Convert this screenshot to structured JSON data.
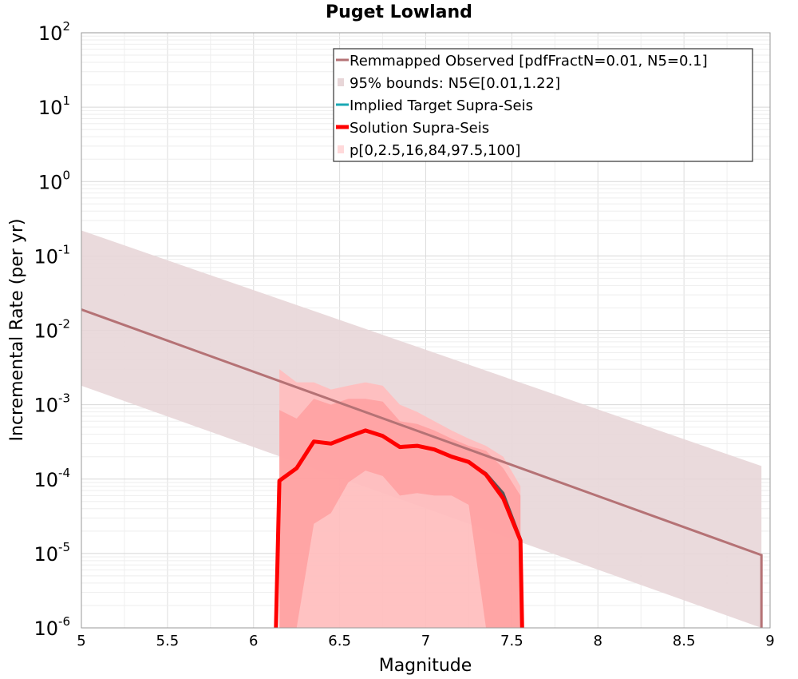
{
  "chart_data": {
    "type": "line",
    "title": "Puget Lowland",
    "xlabel": "Magnitude",
    "ylabel": "Incremental Rate (per yr)",
    "xlim": [
      5,
      9
    ],
    "ylim": [
      1e-06,
      100
    ],
    "yscale": "log",
    "grid": true,
    "legend_position": "top-right",
    "x_ticks": [
      "5",
      "5.5",
      "6",
      "6.5",
      "7",
      "7.5",
      "8",
      "8.5",
      "9"
    ],
    "y_tick_bases": [
      "10",
      "10",
      "10",
      "10",
      "10",
      "10",
      "10",
      "10",
      "10"
    ],
    "y_tick_exponents": [
      "-6",
      "-5",
      "-4",
      "-3",
      "-2",
      "-1",
      "0",
      "1",
      "2"
    ],
    "colors": {
      "observed": "#b57275",
      "observed_band": "#e8d6d8",
      "target": "#1aa9b4",
      "solution": "#ff0000",
      "band_outer": "#ffd9da",
      "band_mid": "#ffaaaa",
      "band_inner": "#ff8e8e"
    },
    "legend": [
      {
        "key": "observed",
        "label": "Remmapped Observed [pdfFractN=0.01, N5=0.1]",
        "style": "line"
      },
      {
        "key": "observed_band",
        "label": "95% bounds: N5∈[0.01,1.22]",
        "style": "box"
      },
      {
        "key": "target",
        "label": "Implied Target Supra-Seis",
        "style": "line"
      },
      {
        "key": "solution",
        "label": "Solution Supra-Seis",
        "style": "thick"
      },
      {
        "key": "band_outer",
        "label": "p[0,2.5,16,84,97.5,100]",
        "style": "box"
      }
    ],
    "series": [
      {
        "name": "Remmapped Observed [pdfFractN=0.01, N5=0.1]",
        "x": [
          5.0,
          8.95
        ],
        "y": [
          0.019,
          9.5e-06
        ]
      },
      {
        "name": "95% bounds: N5∈[0.01,1.22]",
        "type": "band",
        "x": [
          5.0,
          8.95
        ],
        "y_low": [
          0.0018,
          8e-07
        ],
        "y_high": [
          0.22,
          0.00015
        ]
      },
      {
        "name": "Implied Target Supra-Seis",
        "x": [
          6.15,
          6.25,
          6.35,
          6.45,
          6.55,
          6.65,
          6.75,
          6.85,
          6.95,
          7.05,
          7.15,
          7.25,
          7.35,
          7.45,
          7.55
        ],
        "y": [
          9.5e-05,
          0.00014,
          0.00032,
          0.0003,
          0.00037,
          0.00045,
          0.00038,
          0.00027,
          0.00028,
          0.00025,
          0.0002,
          0.00017,
          0.00012,
          6.5e-05,
          1.6e-05
        ]
      },
      {
        "name": "Solution Supra-Seis",
        "x": [
          6.13,
          6.15,
          6.25,
          6.35,
          6.45,
          6.55,
          6.65,
          6.75,
          6.85,
          6.95,
          7.05,
          7.15,
          7.25,
          7.35,
          7.45,
          7.55,
          7.56
        ],
        "y": [
          1e-06,
          9.5e-05,
          0.00014,
          0.00032,
          0.0003,
          0.00037,
          0.00045,
          0.00038,
          0.00027,
          0.00028,
          0.00025,
          0.0002,
          0.00017,
          0.000115,
          5.5e-05,
          1.5e-05,
          1e-06
        ]
      },
      {
        "name": "p[0,2.5,16,84,97.5,100]",
        "type": "percentile_bands",
        "x": [
          6.15,
          6.25,
          6.35,
          6.45,
          6.55,
          6.65,
          6.75,
          6.85,
          6.95,
          7.05,
          7.15,
          7.25,
          7.35,
          7.45,
          7.55
        ],
        "p0": [
          1e-06,
          1e-06,
          1e-06,
          1e-06,
          1e-06,
          1e-06,
          1e-06,
          1e-06,
          1e-06,
          1e-06,
          1e-06,
          1e-06,
          1e-06,
          1e-06,
          1e-06
        ],
        "p2_5": [
          1e-06,
          1e-06,
          1e-06,
          1e-06,
          1e-06,
          1e-06,
          1e-06,
          1e-06,
          1e-06,
          1e-06,
          1e-06,
          1e-06,
          1e-06,
          1e-06,
          1e-06
        ],
        "p16": [
          1e-06,
          1e-06,
          2.5e-05,
          3.5e-05,
          9e-05,
          0.00013,
          0.00011,
          6e-05,
          6.5e-05,
          6e-05,
          6e-05,
          4.5e-05,
          1e-06,
          1e-06,
          1e-06
        ],
        "p84": [
          0.00085,
          0.00065,
          0.0012,
          0.001,
          0.0012,
          0.0012,
          0.0011,
          0.0006,
          0.00055,
          0.00045,
          0.00035,
          0.00028,
          0.00024,
          0.00014,
          6e-05
        ],
        "p97_5": [
          0.003,
          0.002,
          0.002,
          0.0016,
          0.0018,
          0.002,
          0.0018,
          0.001,
          0.0008,
          0.0006,
          0.00045,
          0.00035,
          0.00028,
          0.0002,
          8e-05
        ],
        "p100": [
          0.003,
          0.002,
          0.002,
          0.0016,
          0.0018,
          0.002,
          0.0018,
          0.001,
          0.0008,
          0.0006,
          0.00045,
          0.00035,
          0.00028,
          0.0002,
          8e-05
        ]
      }
    ]
  }
}
